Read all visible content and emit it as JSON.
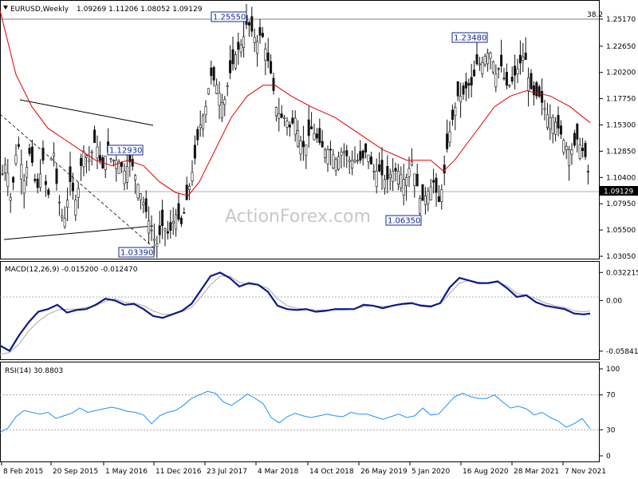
{
  "chart_data": {
    "type": "candlestick",
    "symbol_header": "EURUSD,Weekly",
    "ohlc_header": "1.09269 1.11206 1.08052 1.09129",
    "watermark": "ActionForex.com",
    "price_axis": {
      "ylim": [
        1.0305,
        1.2605
      ],
      "ticks": [
        "1.25170",
        "1.22650",
        "1.20200",
        "1.17750",
        "1.15300",
        "1.12850",
        "1.10400",
        "1.07950",
        "1.05500",
        "1.03050"
      ]
    },
    "x_ticks": [
      "8 Feb 2015",
      "20 Sep 2015",
      "1 May 2016",
      "11 Dec 2016",
      "23 Jul 2017",
      "4 Mar 2018",
      "14 Oct 2018",
      "26 May 2019",
      "5 Jan 2020",
      "16 Aug 2020",
      "28 Mar 2021",
      "7 Nov 2021"
    ],
    "current_price": "1.09129",
    "fib_label": "38.2",
    "annotations": [
      "1.25550",
      "1.23480",
      "1.12930",
      "1.06350",
      "1.03390"
    ],
    "price_path": [
      [
        0,
        1.1
      ],
      [
        8,
        1.12
      ],
      [
        14,
        1.08
      ],
      [
        22,
        1.14
      ],
      [
        30,
        1.1
      ],
      [
        38,
        1.13
      ],
      [
        46,
        1.09
      ],
      [
        54,
        1.12
      ],
      [
        60,
        1.08
      ],
      [
        66,
        1.14
      ],
      [
        72,
        1.09
      ],
      [
        80,
        1.06
      ],
      [
        88,
        1.1
      ],
      [
        96,
        1.08
      ],
      [
        104,
        1.13
      ],
      [
        112,
        1.12
      ],
      [
        120,
        1.14
      ],
      [
        128,
        1.11
      ],
      [
        134,
        1.13
      ],
      [
        140,
        1.12
      ],
      [
        148,
        1.12
      ],
      [
        156,
        1.11
      ],
      [
        164,
        1.12
      ],
      [
        172,
        1.1
      ],
      [
        180,
        1.08
      ],
      [
        188,
        1.06
      ],
      [
        196,
        1.04
      ],
      [
        204,
        1.06
      ],
      [
        212,
        1.05
      ],
      [
        220,
        1.07
      ],
      [
        228,
        1.06
      ],
      [
        236,
        1.09
      ],
      [
        244,
        1.12
      ],
      [
        250,
        1.15
      ],
      [
        258,
        1.17
      ],
      [
        264,
        1.2
      ],
      [
        272,
        1.19
      ],
      [
        280,
        1.17
      ],
      [
        288,
        1.2
      ],
      [
        296,
        1.22
      ],
      [
        304,
        1.23
      ],
      [
        310,
        1.25
      ],
      [
        316,
        1.24
      ],
      [
        322,
        1.23
      ],
      [
        328,
        1.24
      ],
      [
        334,
        1.22
      ],
      [
        340,
        1.2
      ],
      [
        346,
        1.17
      ],
      [
        352,
        1.16
      ],
      [
        358,
        1.16
      ],
      [
        364,
        1.15
      ],
      [
        370,
        1.16
      ],
      [
        376,
        1.14
      ],
      [
        382,
        1.13
      ],
      [
        390,
        1.15
      ],
      [
        398,
        1.14
      ],
      [
        406,
        1.13
      ],
      [
        414,
        1.13
      ],
      [
        422,
        1.12
      ],
      [
        430,
        1.13
      ],
      [
        438,
        1.12
      ],
      [
        446,
        1.12
      ],
      [
        454,
        1.12
      ],
      [
        460,
        1.13
      ],
      [
        468,
        1.11
      ],
      [
        476,
        1.11
      ],
      [
        484,
        1.1
      ],
      [
        492,
        1.11
      ],
      [
        500,
        1.11
      ],
      [
        508,
        1.1
      ],
      [
        516,
        1.12
      ],
      [
        522,
        1.1
      ],
      [
        528,
        1.08
      ],
      [
        536,
        1.09
      ],
      [
        544,
        1.1
      ],
      [
        550,
        1.08
      ],
      [
        556,
        1.1
      ],
      [
        562,
        1.14
      ],
      [
        568,
        1.16
      ],
      [
        574,
        1.18
      ],
      [
        580,
        1.18
      ],
      [
        586,
        1.19
      ],
      [
        592,
        1.19
      ],
      [
        598,
        1.21
      ],
      [
        604,
        1.21
      ],
      [
        610,
        1.22
      ],
      [
        616,
        1.22
      ],
      [
        622,
        1.2
      ],
      [
        628,
        1.21
      ],
      [
        634,
        1.19
      ],
      [
        640,
        1.19
      ],
      [
        646,
        1.2
      ],
      [
        652,
        1.21
      ],
      [
        658,
        1.22
      ],
      [
        664,
        1.19
      ],
      [
        670,
        1.18
      ],
      [
        676,
        1.18
      ],
      [
        682,
        1.17
      ],
      [
        688,
        1.16
      ],
      [
        694,
        1.16
      ],
      [
        700,
        1.15
      ],
      [
        706,
        1.14
      ],
      [
        712,
        1.13
      ],
      [
        718,
        1.13
      ],
      [
        724,
        1.14
      ],
      [
        730,
        1.13
      ],
      [
        736,
        1.12
      ],
      [
        740,
        1.09
      ]
    ],
    "ma_path": [
      [
        0,
        1.26
      ],
      [
        20,
        1.2
      ],
      [
        40,
        1.17
      ],
      [
        60,
        1.15
      ],
      [
        80,
        1.14
      ],
      [
        100,
        1.13
      ],
      [
        120,
        1.12
      ],
      [
        140,
        1.115
      ],
      [
        160,
        1.12
      ],
      [
        180,
        1.115
      ],
      [
        200,
        1.1
      ],
      [
        220,
        1.09
      ],
      [
        236,
        1.087
      ],
      [
        250,
        1.1
      ],
      [
        270,
        1.13
      ],
      [
        290,
        1.16
      ],
      [
        310,
        1.18
      ],
      [
        330,
        1.19
      ],
      [
        345,
        1.19
      ],
      [
        365,
        1.18
      ],
      [
        390,
        1.17
      ],
      [
        420,
        1.16
      ],
      [
        450,
        1.145
      ],
      [
        480,
        1.13
      ],
      [
        510,
        1.12
      ],
      [
        540,
        1.12
      ],
      [
        556,
        1.11
      ],
      [
        570,
        1.12
      ],
      [
        590,
        1.14
      ],
      [
        620,
        1.17
      ],
      [
        640,
        1.18
      ],
      [
        660,
        1.185
      ],
      [
        690,
        1.18
      ],
      [
        715,
        1.17
      ],
      [
        740,
        1.155
      ]
    ],
    "macd": {
      "label": "MACD(12,26,9) -0.015200 -0.012470",
      "ylim": [
        -0.064,
        0.038
      ],
      "ticks": [
        "0.032215",
        "0.00",
        "-0.058413"
      ],
      "macd": [
        [
          0,
          -0.052
        ],
        [
          12,
          -0.058
        ],
        [
          24,
          -0.04
        ],
        [
          36,
          -0.025
        ],
        [
          48,
          -0.013
        ],
        [
          60,
          -0.01
        ],
        [
          72,
          -0.005
        ],
        [
          84,
          -0.014
        ],
        [
          96,
          -0.011
        ],
        [
          108,
          -0.01
        ],
        [
          120,
          -0.005
        ],
        [
          132,
          0.002
        ],
        [
          144,
          0.0
        ],
        [
          156,
          -0.005
        ],
        [
          168,
          -0.004
        ],
        [
          180,
          -0.01
        ],
        [
          192,
          -0.018
        ],
        [
          204,
          -0.02
        ],
        [
          216,
          -0.016
        ],
        [
          228,
          -0.012
        ],
        [
          240,
          -0.004
        ],
        [
          252,
          0.012
        ],
        [
          264,
          0.028
        ],
        [
          276,
          0.032
        ],
        [
          288,
          0.026
        ],
        [
          300,
          0.016
        ],
        [
          312,
          0.02
        ],
        [
          324,
          0.018
        ],
        [
          336,
          0.01
        ],
        [
          348,
          -0.006
        ],
        [
          360,
          -0.01
        ],
        [
          372,
          -0.011
        ],
        [
          384,
          -0.01
        ],
        [
          396,
          -0.013
        ],
        [
          408,
          -0.012
        ],
        [
          420,
          -0.01
        ],
        [
          432,
          -0.01
        ],
        [
          444,
          -0.01
        ],
        [
          456,
          -0.005
        ],
        [
          468,
          -0.006
        ],
        [
          480,
          -0.009
        ],
        [
          492,
          -0.006
        ],
        [
          504,
          -0.004
        ],
        [
          516,
          -0.003
        ],
        [
          528,
          -0.006
        ],
        [
          540,
          -0.007
        ],
        [
          552,
          -0.003
        ],
        [
          564,
          0.015
        ],
        [
          576,
          0.026
        ],
        [
          588,
          0.023
        ],
        [
          600,
          0.02
        ],
        [
          612,
          0.02
        ],
        [
          624,
          0.022
        ],
        [
          636,
          0.014
        ],
        [
          648,
          0.004
        ],
        [
          660,
          0.006
        ],
        [
          672,
          -0.002
        ],
        [
          684,
          -0.006
        ],
        [
          696,
          -0.008
        ],
        [
          708,
          -0.01
        ],
        [
          720,
          -0.015
        ],
        [
          732,
          -0.016
        ],
        [
          740,
          -0.015
        ]
      ],
      "signal": [
        [
          0,
          -0.062
        ],
        [
          12,
          -0.06
        ],
        [
          24,
          -0.05
        ],
        [
          36,
          -0.035
        ],
        [
          48,
          -0.024
        ],
        [
          60,
          -0.016
        ],
        [
          72,
          -0.011
        ],
        [
          84,
          -0.01
        ],
        [
          96,
          -0.01
        ],
        [
          108,
          -0.008
        ],
        [
          120,
          -0.006
        ],
        [
          132,
          -0.001
        ],
        [
          144,
          0.002
        ],
        [
          156,
          -0.002
        ],
        [
          168,
          -0.003
        ],
        [
          180,
          -0.006
        ],
        [
          192,
          -0.012
        ],
        [
          204,
          -0.016
        ],
        [
          216,
          -0.016
        ],
        [
          228,
          -0.013
        ],
        [
          240,
          -0.008
        ],
        [
          252,
          0.004
        ],
        [
          264,
          0.018
        ],
        [
          276,
          0.028
        ],
        [
          288,
          0.028
        ],
        [
          300,
          0.021
        ],
        [
          312,
          0.018
        ],
        [
          324,
          0.018
        ],
        [
          336,
          0.014
        ],
        [
          348,
          0.002
        ],
        [
          360,
          -0.006
        ],
        [
          372,
          -0.009
        ],
        [
          384,
          -0.01
        ],
        [
          396,
          -0.011
        ],
        [
          408,
          -0.011
        ],
        [
          420,
          -0.011
        ],
        [
          432,
          -0.011
        ],
        [
          444,
          -0.01
        ],
        [
          456,
          -0.007
        ],
        [
          468,
          -0.006
        ],
        [
          480,
          -0.007
        ],
        [
          492,
          -0.006
        ],
        [
          504,
          -0.005
        ],
        [
          516,
          -0.004
        ],
        [
          528,
          -0.005
        ],
        [
          540,
          -0.006
        ],
        [
          552,
          -0.004
        ],
        [
          564,
          0.008
        ],
        [
          576,
          0.02
        ],
        [
          588,
          0.023
        ],
        [
          600,
          0.021
        ],
        [
          612,
          0.02
        ],
        [
          624,
          0.021
        ],
        [
          636,
          0.017
        ],
        [
          648,
          0.008
        ],
        [
          660,
          0.006
        ],
        [
          672,
          0.002
        ],
        [
          684,
          -0.003
        ],
        [
          696,
          -0.006
        ],
        [
          708,
          -0.008
        ],
        [
          720,
          -0.012
        ],
        [
          732,
          -0.013
        ],
        [
          740,
          -0.012
        ]
      ]
    },
    "rsi": {
      "label": "RSI(14) 30.8803",
      "ylim": [
        0,
        100
      ],
      "ticks": [
        "100",
        "70",
        "30",
        "0"
      ],
      "levels": [
        70,
        30
      ],
      "values": [
        [
          0,
          27
        ],
        [
          10,
          32
        ],
        [
          20,
          45
        ],
        [
          30,
          52
        ],
        [
          40,
          50
        ],
        [
          50,
          48
        ],
        [
          60,
          50
        ],
        [
          70,
          43
        ],
        [
          80,
          46
        ],
        [
          90,
          49
        ],
        [
          100,
          55
        ],
        [
          110,
          50
        ],
        [
          120,
          52
        ],
        [
          130,
          54
        ],
        [
          140,
          56
        ],
        [
          150,
          54
        ],
        [
          160,
          51
        ],
        [
          170,
          50
        ],
        [
          180,
          47
        ],
        [
          190,
          37
        ],
        [
          200,
          46
        ],
        [
          210,
          50
        ],
        [
          220,
          52
        ],
        [
          230,
          58
        ],
        [
          240,
          66
        ],
        [
          250,
          70
        ],
        [
          260,
          74
        ],
        [
          270,
          72
        ],
        [
          280,
          62
        ],
        [
          290,
          58
        ],
        [
          300,
          64
        ],
        [
          310,
          71
        ],
        [
          320,
          66
        ],
        [
          330,
          60
        ],
        [
          340,
          44
        ],
        [
          350,
          38
        ],
        [
          360,
          45
        ],
        [
          370,
          49
        ],
        [
          380,
          46
        ],
        [
          390,
          44
        ],
        [
          400,
          46
        ],
        [
          410,
          48
        ],
        [
          420,
          46
        ],
        [
          430,
          45
        ],
        [
          440,
          50
        ],
        [
          450,
          48
        ],
        [
          460,
          48
        ],
        [
          470,
          45
        ],
        [
          480,
          42
        ],
        [
          490,
          45
        ],
        [
          500,
          48
        ],
        [
          510,
          44
        ],
        [
          520,
          46
        ],
        [
          530,
          55
        ],
        [
          540,
          47
        ],
        [
          550,
          48
        ],
        [
          560,
          58
        ],
        [
          570,
          68
        ],
        [
          580,
          72
        ],
        [
          590,
          68
        ],
        [
          600,
          66
        ],
        [
          610,
          66
        ],
        [
          620,
          70
        ],
        [
          630,
          62
        ],
        [
          640,
          55
        ],
        [
          650,
          57
        ],
        [
          660,
          54
        ],
        [
          670,
          47
        ],
        [
          680,
          50
        ],
        [
          690,
          44
        ],
        [
          700,
          40
        ],
        [
          710,
          33
        ],
        [
          720,
          37
        ],
        [
          730,
          43
        ],
        [
          740,
          31
        ]
      ]
    }
  }
}
